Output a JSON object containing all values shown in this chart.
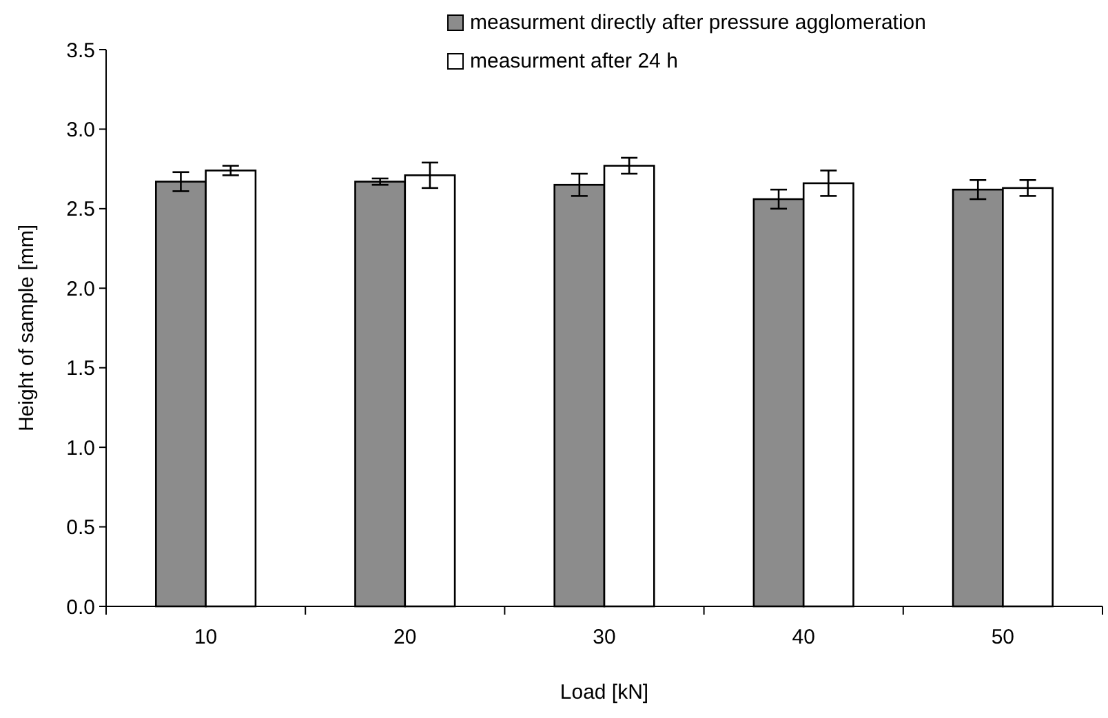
{
  "chart_data": {
    "type": "bar",
    "xlabel": "Load [kN]",
    "ylabel": "Height of sample [mm]",
    "categories": [
      "10",
      "20",
      "30",
      "40",
      "50"
    ],
    "series": [
      {
        "name": "measurment directly after pressure agglomeration",
        "color": "#8c8c8c",
        "values": [
          2.67,
          2.67,
          2.65,
          2.56,
          2.62
        ],
        "errors": [
          0.06,
          0.02,
          0.07,
          0.06,
          0.06
        ]
      },
      {
        "name": "measurment after 24 h",
        "color": "#ffffff",
        "values": [
          2.74,
          2.71,
          2.77,
          2.66,
          2.63
        ],
        "errors": [
          0.03,
          0.08,
          0.05,
          0.08,
          0.05
        ]
      }
    ],
    "ylim": [
      0,
      3.5
    ],
    "yticks": [
      {
        "value": 0,
        "label": "0.0"
      },
      {
        "value": 0.5,
        "label": "0.5"
      },
      {
        "value": 1,
        "label": "1.0"
      },
      {
        "value": 1.5,
        "label": "1.5"
      },
      {
        "value": 2,
        "label": "2.0"
      },
      {
        "value": 2.5,
        "label": "2.5"
      },
      {
        "value": 3,
        "label": "3.0"
      },
      {
        "value": 3.5,
        "label": "3.5"
      }
    ],
    "legend": "top right",
    "grid": false
  }
}
